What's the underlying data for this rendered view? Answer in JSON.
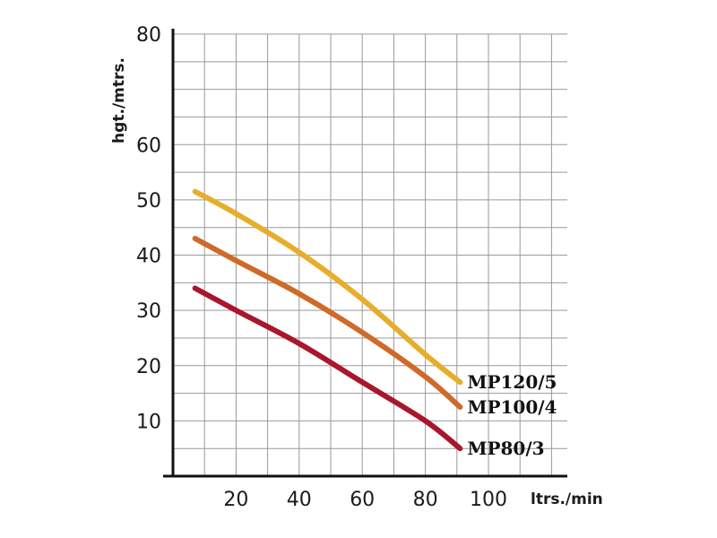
{
  "chart_data": {
    "type": "line",
    "xlabel": "ltrs./min",
    "ylabel": "hgt./mtrs.",
    "xlim": [
      0,
      125
    ],
    "ylim": [
      0,
      80
    ],
    "x_ticks": [
      20,
      40,
      60,
      80,
      100
    ],
    "y_ticks": [
      10,
      20,
      30,
      40,
      50,
      60,
      80
    ],
    "grid": true,
    "legend": "inline-right",
    "series": [
      {
        "name": "MP120/5",
        "color": "#E6AE2A",
        "x": [
          7,
          20,
          40,
          60,
          80,
          91
        ],
        "y": [
          51.5,
          47.5,
          40.5,
          32,
          22,
          17
        ]
      },
      {
        "name": "MP100/4",
        "color": "#CF6A2A",
        "x": [
          7,
          20,
          40,
          60,
          80,
          91
        ],
        "y": [
          43,
          39,
          33,
          26,
          18,
          12.5
        ]
      },
      {
        "name": "MP80/3",
        "color": "#A8172C",
        "x": [
          7,
          20,
          40,
          60,
          80,
          91
        ],
        "y": [
          34,
          30,
          24,
          17,
          10,
          5
        ]
      }
    ]
  }
}
